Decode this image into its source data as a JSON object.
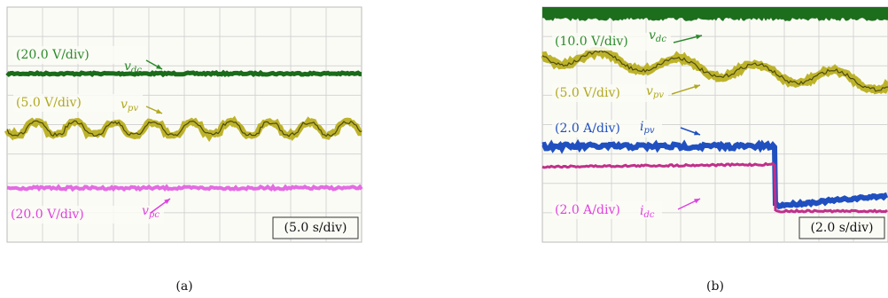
{
  "panels": [
    {
      "caption": "(a)",
      "time_scale": "(5.0 s/div)",
      "traces": [
        {
          "scale": "(20.0 V/div)",
          "symbol": "v",
          "sub": "dc"
        },
        {
          "scale": "(5.0 V/div)",
          "symbol": "v",
          "sub": "pv"
        },
        {
          "scale": "(20.0 V/div)",
          "symbol": "v",
          "sub": "pc"
        }
      ]
    },
    {
      "caption": "(b)",
      "time_scale": "(2.0 s/div)",
      "traces": [
        {
          "scale": "(10.0 V/div)",
          "symbol": "v",
          "sub": "dc"
        },
        {
          "scale": "(5.0 V/div)",
          "symbol": "v",
          "sub": "pv"
        },
        {
          "scale": "(2.0 A/div)",
          "symbol": "i",
          "sub": "pv"
        },
        {
          "scale": "(2.0 A/div)",
          "symbol": "i",
          "sub": "dc"
        }
      ]
    }
  ]
}
